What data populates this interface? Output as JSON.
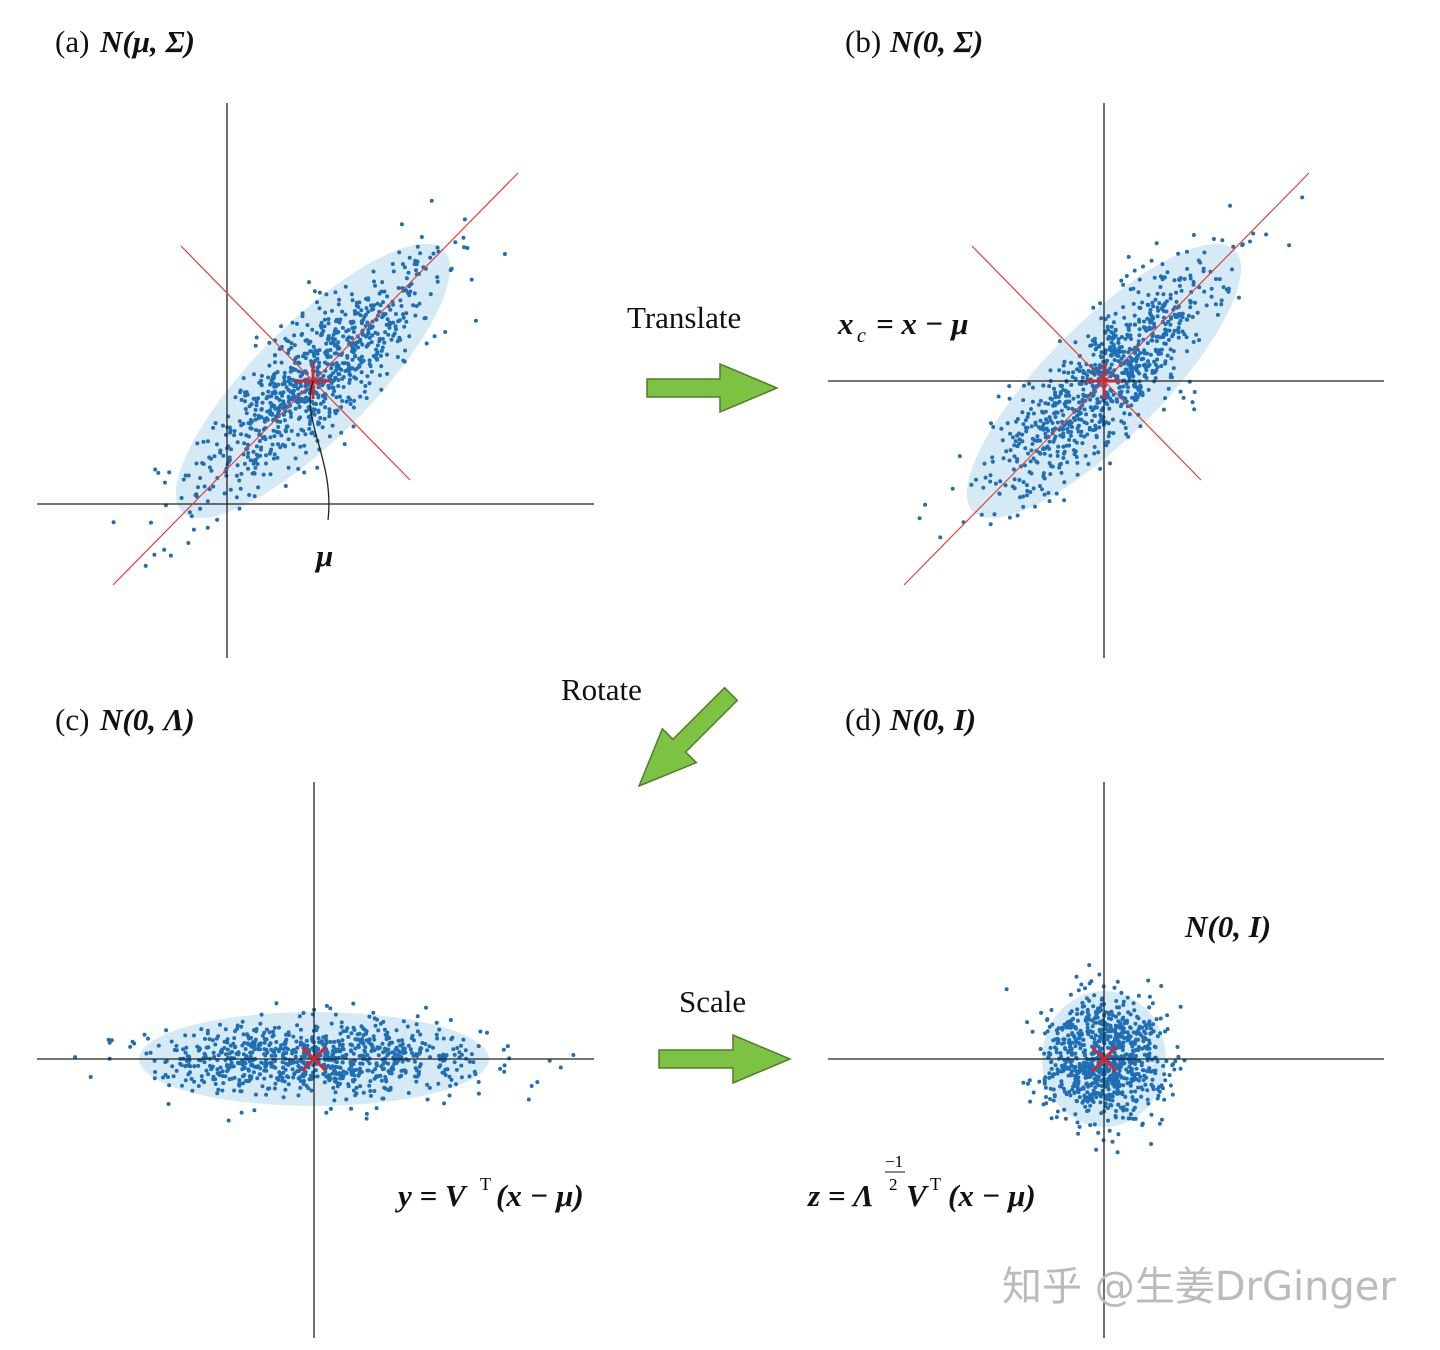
{
  "panels": [
    {
      "tag": "(a)",
      "title": "N(μ, Σ)"
    },
    {
      "tag": "(b)",
      "title": "N(0, Σ)"
    },
    {
      "tag": "(c)",
      "title": "N(0, Λ)"
    },
    {
      "tag": "(d)",
      "title": "N(0, I)"
    }
  ],
  "arrows": [
    "Translate",
    "Rotate",
    "Scale"
  ],
  "annotations": {
    "mu": "μ",
    "translate_formula": {
      "lhs": "x",
      "sub": "c",
      "rhs": "= x − μ"
    },
    "standard_normal": "N(0, I)",
    "rotate_formula": {
      "lhs": "y = V",
      "sup": "T",
      "rhs": "(x − μ)"
    },
    "scale_formula": {
      "lhs": "z = Λ",
      "exp_num": "−1",
      "exp_den": "2",
      "v": "V",
      "sup": "T",
      "rhs": "(x − μ)"
    }
  },
  "watermark": "知乎 @生姜DrGinger"
}
